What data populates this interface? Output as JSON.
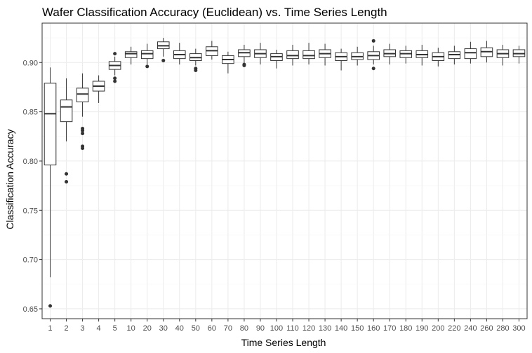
{
  "chart_data": {
    "type": "boxplot",
    "title": "Wafer Classification Accuracy (Euclidean) vs. Time Series Length",
    "xlabel": "Time Series Length",
    "ylabel": "Classification Accuracy",
    "ylim": [
      0.64,
      0.94
    ],
    "yticks": [
      0.65,
      0.7,
      0.75,
      0.8,
      0.85,
      0.9
    ],
    "ytick_labels": [
      "0.65",
      "0.70",
      "0.75",
      "0.80",
      "0.85",
      "0.90"
    ],
    "grid": true,
    "categories": [
      "1",
      "2",
      "3",
      "4",
      "5",
      "10",
      "20",
      "30",
      "40",
      "50",
      "60",
      "70",
      "80",
      "90",
      "100",
      "110",
      "120",
      "130",
      "140",
      "150",
      "160",
      "170",
      "180",
      "190",
      "200",
      "220",
      "240",
      "260",
      "280",
      "300"
    ],
    "boxes": [
      {
        "min": 0.682,
        "q1": 0.796,
        "median": 0.848,
        "q3": 0.879,
        "max": 0.895,
        "outliers": [
          0.653
        ]
      },
      {
        "min": 0.82,
        "q1": 0.84,
        "median": 0.855,
        "q3": 0.862,
        "max": 0.884,
        "outliers": [
          0.787,
          0.779
        ]
      },
      {
        "min": 0.845,
        "q1": 0.86,
        "median": 0.868,
        "q3": 0.874,
        "max": 0.889,
        "outliers": [
          0.833,
          0.831,
          0.828,
          0.815,
          0.813
        ]
      },
      {
        "min": 0.859,
        "q1": 0.871,
        "median": 0.876,
        "q3": 0.881,
        "max": 0.887,
        "outliers": []
      },
      {
        "min": 0.887,
        "q1": 0.893,
        "median": 0.897,
        "q3": 0.901,
        "max": 0.906,
        "outliers": [
          0.909,
          0.884,
          0.881
        ]
      },
      {
        "min": 0.898,
        "q1": 0.905,
        "median": 0.909,
        "q3": 0.911,
        "max": 0.916,
        "outliers": []
      },
      {
        "min": 0.898,
        "q1": 0.904,
        "median": 0.909,
        "q3": 0.912,
        "max": 0.919,
        "outliers": [
          0.896
        ]
      },
      {
        "min": 0.906,
        "q1": 0.914,
        "median": 0.917,
        "q3": 0.921,
        "max": 0.925,
        "outliers": [
          0.902
        ]
      },
      {
        "min": 0.898,
        "q1": 0.904,
        "median": 0.908,
        "q3": 0.912,
        "max": 0.92,
        "outliers": []
      },
      {
        "min": 0.897,
        "q1": 0.902,
        "median": 0.905,
        "q3": 0.909,
        "max": 0.914,
        "outliers": [
          0.894,
          0.892
        ]
      },
      {
        "min": 0.903,
        "q1": 0.907,
        "median": 0.912,
        "q3": 0.916,
        "max": 0.922,
        "outliers": []
      },
      {
        "min": 0.889,
        "q1": 0.899,
        "median": 0.903,
        "q3": 0.907,
        "max": 0.911,
        "outliers": []
      },
      {
        "min": 0.899,
        "q1": 0.906,
        "median": 0.91,
        "q3": 0.913,
        "max": 0.918,
        "outliers": [
          0.898,
          0.897
        ]
      },
      {
        "min": 0.898,
        "q1": 0.905,
        "median": 0.909,
        "q3": 0.913,
        "max": 0.92,
        "outliers": []
      },
      {
        "min": 0.894,
        "q1": 0.902,
        "median": 0.906,
        "q3": 0.909,
        "max": 0.913,
        "outliers": []
      },
      {
        "min": 0.897,
        "q1": 0.904,
        "median": 0.907,
        "q3": 0.912,
        "max": 0.918,
        "outliers": []
      },
      {
        "min": 0.898,
        "q1": 0.904,
        "median": 0.907,
        "q3": 0.912,
        "max": 0.92,
        "outliers": []
      },
      {
        "min": 0.897,
        "q1": 0.905,
        "median": 0.909,
        "q3": 0.913,
        "max": 0.919,
        "outliers": []
      },
      {
        "min": 0.892,
        "q1": 0.902,
        "median": 0.906,
        "q3": 0.91,
        "max": 0.914,
        "outliers": []
      },
      {
        "min": 0.897,
        "q1": 0.903,
        "median": 0.906,
        "q3": 0.91,
        "max": 0.916,
        "outliers": []
      },
      {
        "min": 0.898,
        "q1": 0.903,
        "median": 0.907,
        "q3": 0.911,
        "max": 0.917,
        "outliers": [
          0.922,
          0.894
        ]
      },
      {
        "min": 0.898,
        "q1": 0.906,
        "median": 0.909,
        "q3": 0.913,
        "max": 0.919,
        "outliers": []
      },
      {
        "min": 0.899,
        "q1": 0.905,
        "median": 0.909,
        "q3": 0.912,
        "max": 0.917,
        "outliers": []
      },
      {
        "min": 0.897,
        "q1": 0.905,
        "median": 0.908,
        "q3": 0.912,
        "max": 0.918,
        "outliers": []
      },
      {
        "min": 0.896,
        "q1": 0.902,
        "median": 0.906,
        "q3": 0.91,
        "max": 0.915,
        "outliers": []
      },
      {
        "min": 0.898,
        "q1": 0.904,
        "median": 0.908,
        "q3": 0.911,
        "max": 0.917,
        "outliers": []
      },
      {
        "min": 0.899,
        "q1": 0.904,
        "median": 0.91,
        "q3": 0.914,
        "max": 0.921,
        "outliers": []
      },
      {
        "min": 0.9,
        "q1": 0.906,
        "median": 0.911,
        "q3": 0.915,
        "max": 0.922,
        "outliers": []
      },
      {
        "min": 0.897,
        "q1": 0.905,
        "median": 0.909,
        "q3": 0.913,
        "max": 0.918,
        "outliers": []
      },
      {
        "min": 0.899,
        "q1": 0.906,
        "median": 0.909,
        "q3": 0.913,
        "max": 0.917,
        "outliers": []
      }
    ]
  }
}
